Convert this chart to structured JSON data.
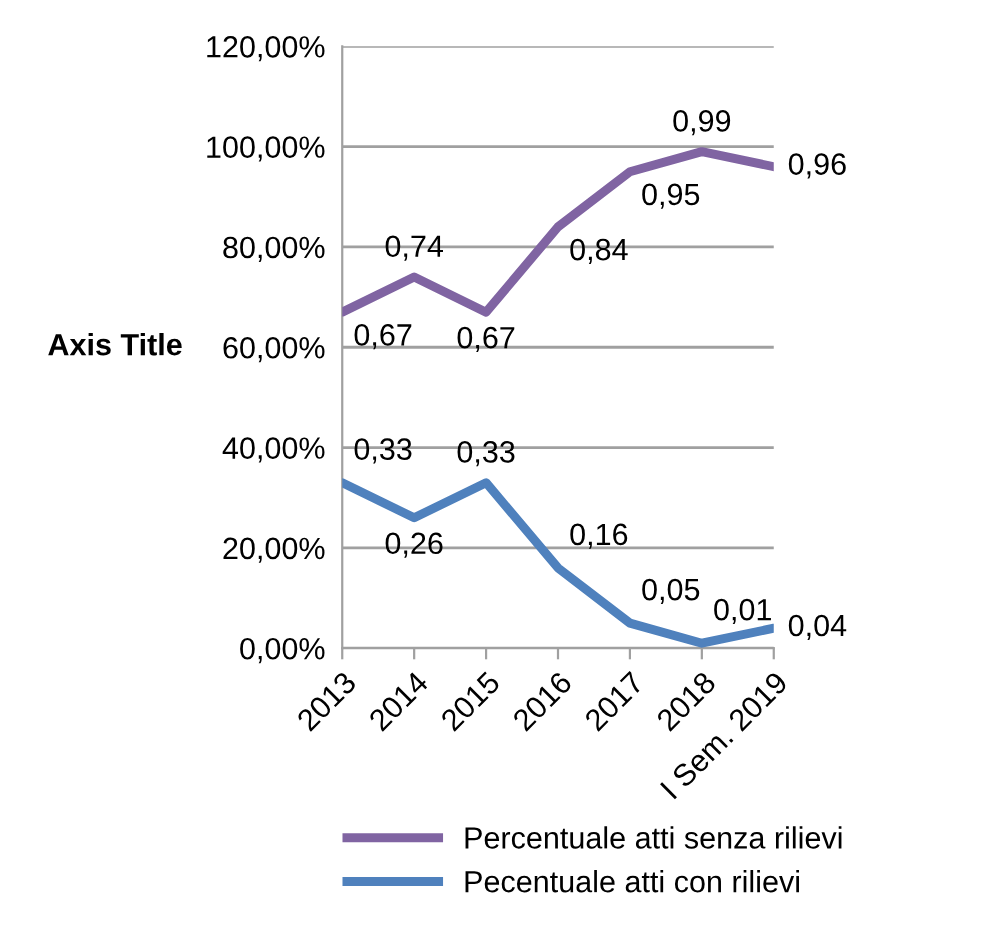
{
  "chart_data": {
    "type": "line",
    "ylabel": "Axis Title",
    "categories": [
      "2013",
      "2014",
      "2015",
      "2016",
      "2017",
      "2018",
      "I Sem. 2019"
    ],
    "series": [
      {
        "name": "Percentuale atti senza rilievi",
        "color": "#8064a2",
        "values": [
          0.67,
          0.74,
          0.67,
          0.84,
          0.95,
          0.99,
          0.96
        ],
        "value_labels": [
          "0,67",
          "0,74",
          "0,67",
          "0,84",
          "0,95",
          "0,99",
          "0,96"
        ]
      },
      {
        "name": "Pecentuale atti con rilievi",
        "color": "#4f81bd",
        "values": [
          0.33,
          0.26,
          0.33,
          0.16,
          0.05,
          0.01,
          0.04
        ],
        "value_labels": [
          "0,33",
          "0,26",
          "0,33",
          "0,16",
          "0,05",
          "0,01",
          "0,04"
        ]
      }
    ],
    "ylim": [
      0,
      1.2
    ],
    "yticks": [
      {
        "value": 0,
        "label": "0,00%"
      },
      {
        "value": 0.2,
        "label": "20,00%"
      },
      {
        "value": 0.4,
        "label": "40,00%"
      },
      {
        "value": 0.6,
        "label": "60,00%"
      },
      {
        "value": 0.8,
        "label": "80,00%"
      },
      {
        "value": 1.0,
        "label": "100,00%"
      },
      {
        "value": 1.2,
        "label": "120,00%"
      }
    ],
    "grid": "y",
    "legend": "bottom",
    "marker": "none",
    "line_style": "solid"
  }
}
